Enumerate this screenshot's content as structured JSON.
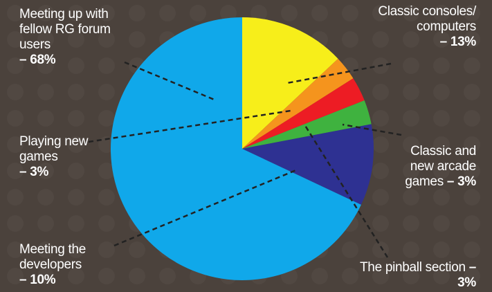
{
  "chart_data": {
    "type": "pie",
    "categories": [
      "Classic consoles/ computers",
      "Playing new games",
      "The pinball section",
      "Classic and new arcade games",
      "Meeting the developers",
      "Meeting up with fellow RG forum users"
    ],
    "values": [
      13,
      3,
      3,
      3,
      10,
      68
    ],
    "value_labels": [
      "– 13%",
      "– 3%",
      "– 3%",
      "– 3%",
      "– 10%",
      "– 68%"
    ],
    "colors": [
      "#f7ee1a",
      "#f5941d",
      "#ed1c24",
      "#3fb23f",
      "#2e3192",
      "#10a8ea"
    ]
  }
}
